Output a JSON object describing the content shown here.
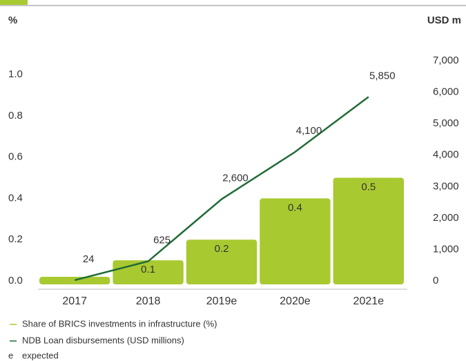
{
  "chart_data": {
    "type": "bar_line",
    "y_label": "%",
    "y2_label": "USD m",
    "categories": [
      "2017",
      "2018",
      "2019e",
      "2020e",
      "2021e"
    ],
    "series": [
      {
        "name": "Share of BRICS investments in  infrastructure (%)",
        "color": "#a9c931",
        "type": "bar",
        "values": [
          0.02,
          0.1,
          0.2,
          0.4,
          0.5
        ],
        "value_labels": [
          null,
          "0.1",
          "0.2",
          "0.4",
          "0.5"
        ]
      },
      {
        "name": "NDB Loan disbursements (USD millions)",
        "color": "#1f6b35",
        "type": "line",
        "axis": "y2",
        "values": [
          24,
          625,
          2600,
          4100,
          5850
        ],
        "value_labels": [
          "24",
          "625",
          "2,600",
          "4,100",
          "5,850"
        ]
      }
    ],
    "ylim": [
      0,
      1.0
    ],
    "yticks": [
      {
        "value": 0,
        "label": "0.0"
      },
      0.2,
      0.4,
      0.6,
      0.8,
      {
        "value": 1,
        "label": "1.0"
      }
    ],
    "y2lim": [
      0,
      7000
    ],
    "y2ticks": [
      0,
      {
        "value": 1000,
        "label": "1,000"
      },
      {
        "value": 2000,
        "label": "2,000"
      },
      {
        "value": 3000,
        "label": "3,000"
      },
      {
        "value": 4000,
        "label": "4,000"
      },
      {
        "value": 5000,
        "label": "5,000"
      },
      {
        "value": 6000,
        "label": "6,000"
      },
      {
        "value": 7000,
        "label": "7,000"
      }
    ],
    "note": {
      "symbol": "e",
      "text": "expected"
    }
  }
}
